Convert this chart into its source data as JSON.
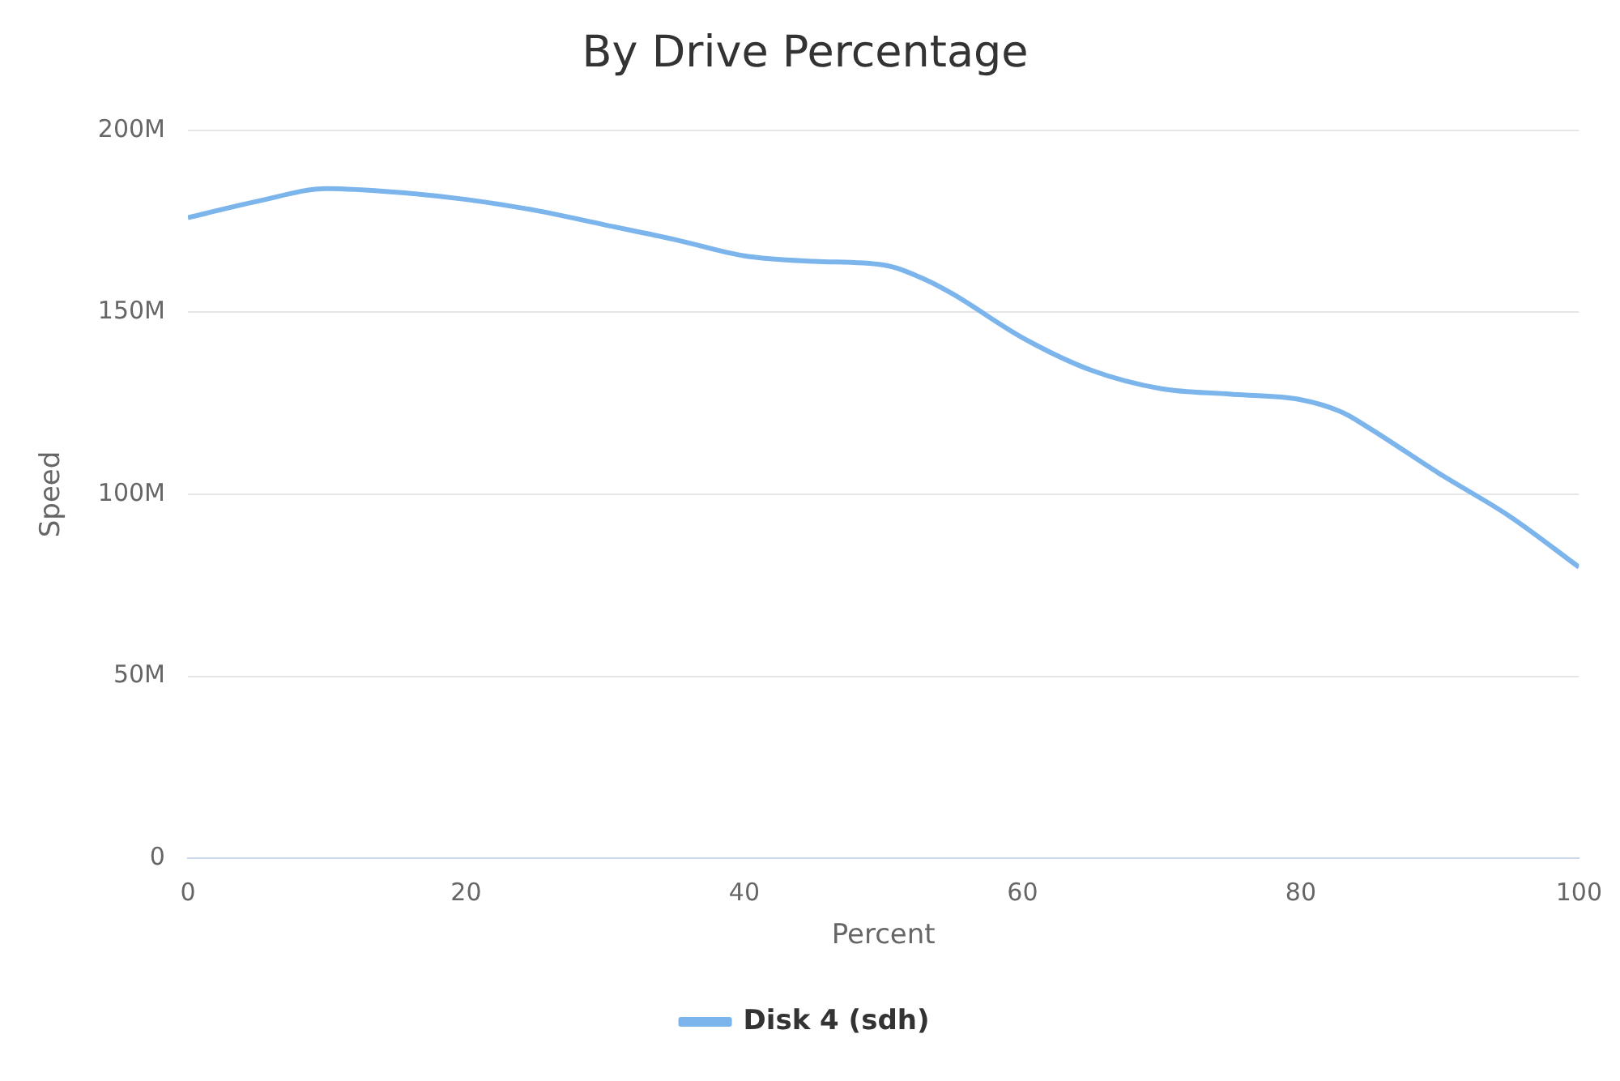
{
  "chart_data": {
    "type": "line",
    "title": "By Drive Percentage",
    "xlabel": "Percent",
    "ylabel": "Speed",
    "x": [
      0,
      5,
      10,
      15,
      20,
      25,
      30,
      35,
      40,
      45,
      50,
      53,
      55,
      60,
      65,
      70,
      75,
      80,
      83,
      85,
      90,
      95,
      100
    ],
    "series": [
      {
        "name": "Disk 4 (sdh)",
        "color": "#7cb5ec",
        "values": [
          176,
          180.5,
          184,
          183,
          181,
          178,
          174,
          170,
          165.5,
          164,
          163,
          159,
          155,
          143,
          134,
          129,
          127.5,
          126,
          122.5,
          118,
          105.6,
          94,
          80
        ]
      }
    ],
    "xlim": [
      0,
      100
    ],
    "xticks": [
      0,
      20,
      40,
      60,
      80,
      100
    ],
    "ylim": [
      0,
      200
    ],
    "yticks": [
      {
        "value": 0,
        "label": "0"
      },
      {
        "value": 50,
        "label": "50M"
      },
      {
        "value": 100,
        "label": "100M"
      },
      {
        "value": 150,
        "label": "150M"
      },
      {
        "value": 200,
        "label": "200M"
      }
    ],
    "grid": "y",
    "legend": "bottom",
    "marker": "none",
    "line_style": "solid"
  }
}
